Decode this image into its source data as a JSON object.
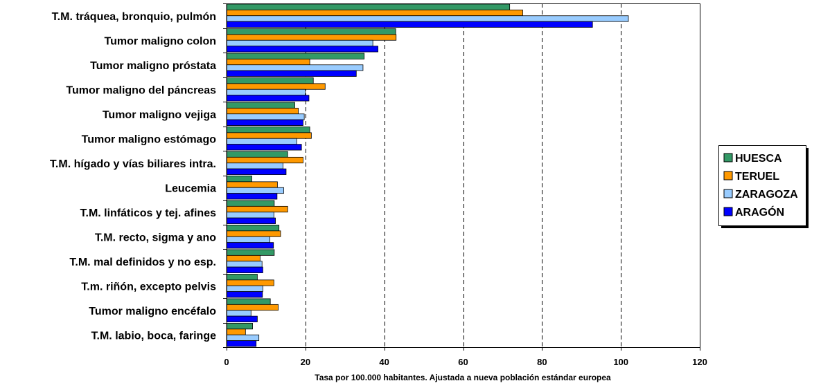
{
  "chart_data": {
    "type": "bar",
    "orientation": "horizontal",
    "title": "",
    "xlabel": "Tasa por 100.000 habitantes. Ajustada a nueva población estándar europea",
    "ylabel": "",
    "xlim": [
      0,
      120
    ],
    "xticks": [
      0,
      20,
      40,
      60,
      80,
      100,
      120
    ],
    "grid": "vertical dashed",
    "legend_position": "right",
    "categories": [
      "T.M. tráquea, bronquio,  pulmón",
      "Tumor maligno colon",
      "Tumor maligno próstata",
      "Tumor maligno del páncreas",
      "Tumor maligno vejiga",
      "Tumor maligno estómago",
      "T.M. hígado y vías biliares intra.",
      "Leucemia",
      "T.M. linfáticos y tej. afines",
      "T.M. recto, sigma y ano",
      "T.M. mal definidos y no esp.",
      "T.m. riñón, excepto pelvis",
      "Tumor maligno encéfalo",
      "T.M. labio, boca, faringe"
    ],
    "series": [
      {
        "name": "HUESCA",
        "color": "#339966",
        "values": [
          71.8,
          42.9,
          34.9,
          22.0,
          17.3,
          21.1,
          15.5,
          6.4,
          12.1,
          13.3,
          12.1,
          7.8,
          11.1,
          6.6
        ]
      },
      {
        "name": "TERUEL",
        "color": "#ff9900",
        "values": [
          75.1,
          43.0,
          21.1,
          25.0,
          18.2,
          21.5,
          19.4,
          12.9,
          15.5,
          13.7,
          8.5,
          12.0,
          13.1,
          4.8
        ]
      },
      {
        "name": "ZARAGOZA",
        "color": "#99ccff",
        "values": [
          101.9,
          37.1,
          34.6,
          20.0,
          19.7,
          17.8,
          14.3,
          14.5,
          12.0,
          11.0,
          9.0,
          9.2,
          6.2,
          8.2
        ]
      },
      {
        "name": "ARAGÓN",
        "color": "#0000ff",
        "values": [
          92.8,
          38.4,
          32.9,
          20.9,
          19.4,
          19.0,
          15.1,
          12.8,
          12.4,
          11.9,
          9.2,
          9.1,
          7.8,
          7.5
        ]
      }
    ]
  }
}
